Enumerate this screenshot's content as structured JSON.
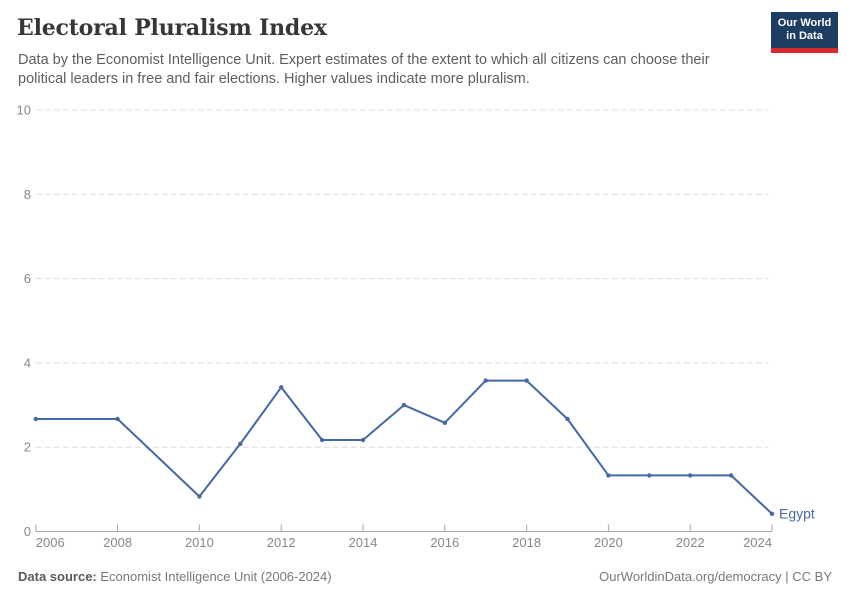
{
  "header": {
    "title": "Electoral Pluralism Index",
    "subtitle": "Data by the Economist Intelligence Unit. Expert estimates of the extent to which all citizens can choose their political leaders in free and fair elections. Higher values indicate more pluralism.",
    "logo": {
      "line1": "Our World",
      "line2": "in Data"
    }
  },
  "chart_data": {
    "type": "line",
    "title": "Electoral Pluralism Index",
    "x": [
      2006,
      2008,
      2010,
      2011,
      2012,
      2013,
      2014,
      2015,
      2016,
      2017,
      2018,
      2019,
      2020,
      2021,
      2022,
      2023,
      2024
    ],
    "series": [
      {
        "name": "Egypt",
        "values": [
          2.67,
          2.67,
          0.83,
          2.08,
          3.42,
          2.17,
          2.17,
          3.0,
          2.58,
          3.58,
          3.58,
          2.67,
          1.33,
          1.33,
          1.33,
          1.33,
          0.42
        ]
      }
    ],
    "xlabel": "",
    "ylabel": "",
    "xlim": [
      2006,
      2024
    ],
    "ylim": [
      0,
      10
    ],
    "xticks": [
      2006,
      2008,
      2010,
      2012,
      2014,
      2016,
      2018,
      2020,
      2022,
      2024
    ],
    "yticks": [
      0,
      2,
      4,
      6,
      8,
      10
    ],
    "grid": "horizontal-dashed",
    "legend": "end-of-line entity label",
    "entity_label": "Egypt"
  },
  "footer": {
    "source_label": "Data source:",
    "source_text": " Economist Intelligence Unit (2006-2024)",
    "link_text": "OurWorldinData.org/democracy | CC BY"
  },
  "colors": {
    "series": "#4668a5",
    "title": "#373737",
    "subtitle": "#5e5e5e",
    "tick_label": "#888888",
    "grid": "#dcdcdc",
    "axis": "#a7a7a7",
    "footer_text": "#787878",
    "footer_label": "#5a5a5a",
    "logo_bg": "#1d3d63",
    "logo_red": "#d7282f"
  }
}
